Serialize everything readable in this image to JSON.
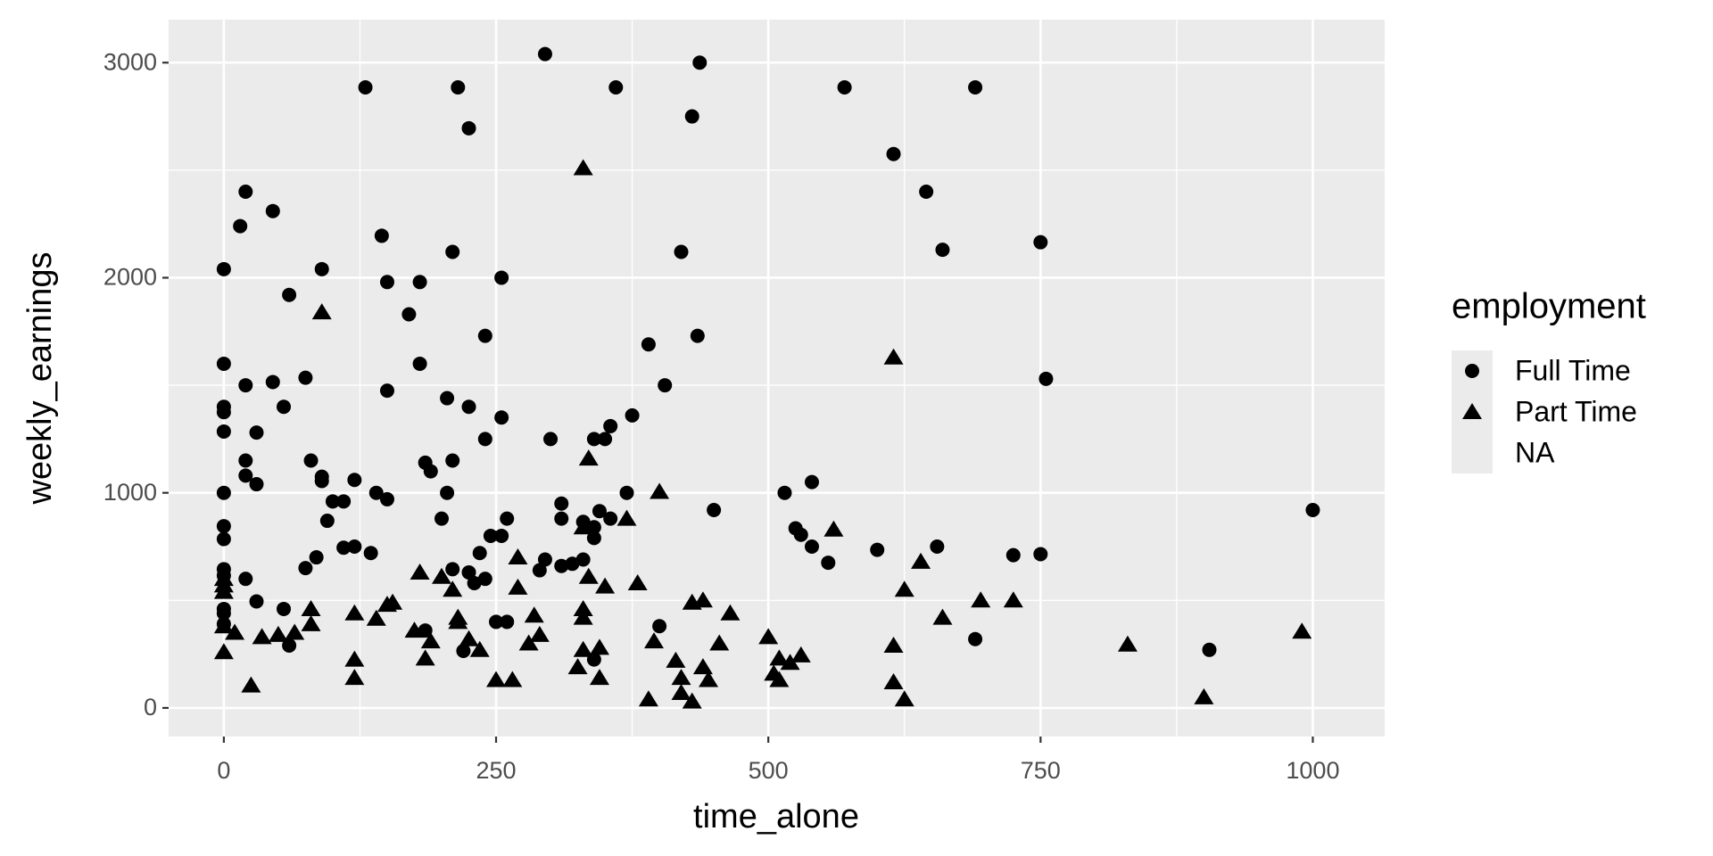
{
  "chart_data": {
    "type": "scatter",
    "x_label": "time_alone",
    "y_label": "weekly_earnings",
    "legend_title": "employment",
    "legend": "right",
    "xlim": [
      -50.7,
      1066
    ],
    "ylim": [
      -133,
      3200
    ],
    "xticks": [
      0,
      250,
      500,
      750,
      1000
    ],
    "yticks": [
      0,
      1000,
      2000,
      3000
    ],
    "grid": true,
    "series": [
      {
        "name": "Full Time",
        "shape": "circle",
        "color": "#000000",
        "x": [
          295,
          437,
          130,
          215,
          360,
          570,
          690,
          430,
          225,
          615,
          20,
          645,
          45,
          15,
          145,
          420,
          210,
          660,
          750,
          0,
          90,
          255,
          150,
          180,
          60,
          170,
          240,
          435,
          390,
          0,
          180,
          755,
          75,
          45,
          20,
          405,
          150,
          205,
          0,
          55,
          225,
          0,
          375,
          255,
          355,
          0,
          30,
          240,
          300,
          340,
          350,
          80,
          20,
          210,
          185,
          190,
          90,
          20,
          90,
          120,
          540,
          30,
          0,
          140,
          205,
          370,
          515,
          100,
          110,
          150,
          310,
          450,
          1000,
          345,
          200,
          260,
          310,
          95,
          330,
          0,
          355,
          525,
          340,
          530,
          0,
          245,
          255,
          340,
          540,
          75,
          85,
          110,
          120,
          135,
          235,
          655,
          600,
          725,
          750,
          295,
          330,
          310,
          320,
          290,
          210,
          225,
          0,
          0,
          555,
          240,
          20,
          230,
          250,
          260,
          0,
          55,
          0,
          30,
          400,
          0,
          185,
          690,
          60,
          220,
          340,
          905
        ],
        "values": [
          3040,
          3000,
          2885,
          2885,
          2885,
          2885,
          2885,
          2750,
          2695,
          2575,
          2400,
          2400,
          2310,
          2240,
          2195,
          2120,
          2120,
          2130,
          2165,
          2040,
          2040,
          2000,
          1980,
          1980,
          1920,
          1830,
          1730,
          1730,
          1690,
          1600,
          1600,
          1530,
          1535,
          1515,
          1500,
          1500,
          1475,
          1440,
          1400,
          1400,
          1400,
          1375,
          1360,
          1350,
          1310,
          1285,
          1280,
          1250,
          1250,
          1250,
          1250,
          1150,
          1150,
          1150,
          1140,
          1100,
          1075,
          1080,
          1055,
          1060,
          1050,
          1040,
          1000,
          1000,
          1000,
          1000,
          1000,
          960,
          960,
          970,
          950,
          920,
          920,
          915,
          880,
          880,
          880,
          870,
          865,
          845,
          880,
          835,
          840,
          805,
          785,
          800,
          800,
          790,
          750,
          650,
          700,
          745,
          750,
          720,
          720,
          750,
          735,
          710,
          715,
          690,
          690,
          660,
          670,
          640,
          645,
          630,
          645,
          615,
          675,
          600,
          600,
          580,
          400,
          400,
          460,
          460,
          440,
          495,
          380,
          390,
          360,
          320,
          290,
          265,
          225,
          270
        ]
      },
      {
        "name": "Part Time",
        "shape": "triangle",
        "color": "#000000",
        "x": [
          330,
          90,
          615,
          335,
          400,
          370,
          330,
          560,
          270,
          640,
          695,
          725,
          180,
          200,
          335,
          0,
          0,
          0,
          380,
          350,
          210,
          625,
          270,
          465,
          440,
          430,
          155,
          150,
          80,
          285,
          120,
          140,
          10,
          0,
          215,
          330,
          660,
          330,
          215,
          80,
          65,
          35,
          50,
          175,
          190,
          290,
          225,
          235,
          280,
          395,
          455,
          500,
          530,
          520,
          830,
          990,
          615,
          345,
          330,
          415,
          440,
          510,
          505,
          510,
          325,
          185,
          120,
          120,
          250,
          265,
          345,
          420,
          445,
          615,
          420,
          390,
          430,
          625,
          900,
          25,
          0
        ],
        "values": [
          2510,
          1840,
          1630,
          1160,
          1005,
          880,
          840,
          830,
          700,
          680,
          500,
          500,
          630,
          610,
          610,
          600,
          570,
          540,
          580,
          565,
          550,
          550,
          560,
          440,
          500,
          490,
          490,
          480,
          460,
          430,
          440,
          415,
          350,
          380,
          400,
          420,
          420,
          460,
          420,
          390,
          350,
          330,
          340,
          360,
          310,
          340,
          320,
          270,
          300,
          310,
          300,
          330,
          245,
          210,
          295,
          355,
          290,
          280,
          270,
          220,
          190,
          230,
          160,
          130,
          190,
          230,
          225,
          140,
          130,
          130,
          140,
          140,
          130,
          120,
          70,
          40,
          30,
          40,
          50,
          105,
          260
        ]
      },
      {
        "name": "NA",
        "shape": null,
        "color": "#000000",
        "x": [],
        "values": []
      }
    ]
  }
}
